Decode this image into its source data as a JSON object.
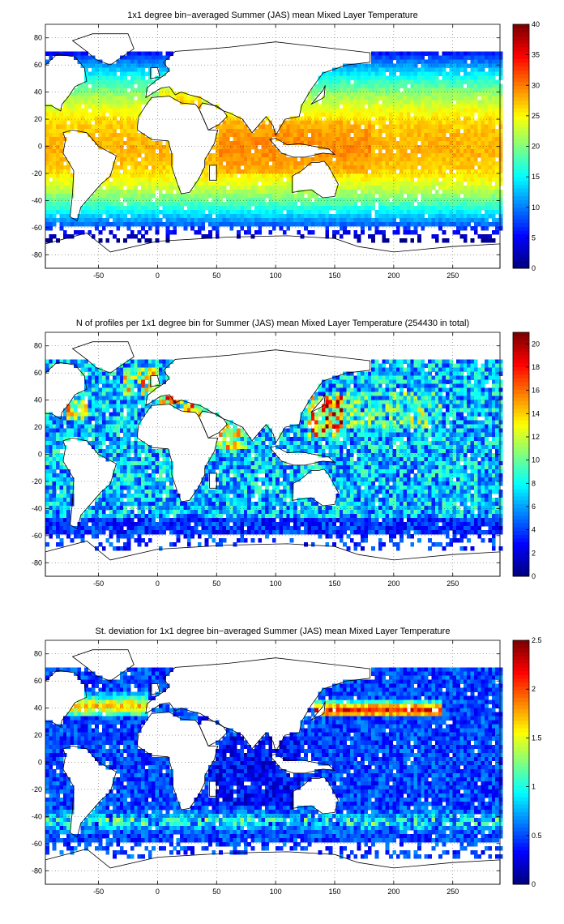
{
  "chart_data": [
    {
      "type": "heatmap",
      "title": "1x1 degree bin−averaged Summer (JAS) mean Mixed Layer Temperature",
      "xlabel": "",
      "ylabel": "",
      "xlim": [
        -95,
        290
      ],
      "ylim": [
        -90,
        90
      ],
      "xticks": [
        -50,
        0,
        50,
        100,
        150,
        200,
        250
      ],
      "yticks": [
        80,
        60,
        40,
        20,
        0,
        -20,
        -40,
        -60,
        -80
      ],
      "colorbar": {
        "min": 0,
        "max": 40,
        "ticks": [
          0,
          5,
          10,
          15,
          20,
          25,
          30,
          35,
          40
        ],
        "colormap": "jet"
      },
      "grid": "dotted",
      "field": "temperature"
    },
    {
      "type": "heatmap",
      "title": "N of profiles per 1x1 degree bin for Summer (JAS) mean Mixed Layer Temperature  (254430 in total)",
      "xlabel": "",
      "ylabel": "",
      "xlim": [
        -95,
        290
      ],
      "ylim": [
        -90,
        90
      ],
      "xticks": [
        -50,
        0,
        50,
        100,
        150,
        200,
        250
      ],
      "yticks": [
        80,
        60,
        40,
        20,
        0,
        -20,
        -40,
        -60,
        -80
      ],
      "colorbar": {
        "min": 0,
        "max": 21,
        "ticks": [
          0,
          2,
          4,
          6,
          8,
          10,
          12,
          14,
          16,
          18,
          20
        ],
        "colormap": "jet"
      },
      "grid": "dotted",
      "field": "count"
    },
    {
      "type": "heatmap",
      "title": "St. deviation for 1x1 degree bin−averaged Summer (JAS) mean Mixed Layer Temperature",
      "xlabel": "",
      "ylabel": "",
      "xlim": [
        -95,
        290
      ],
      "ylim": [
        -90,
        90
      ],
      "xticks": [
        -50,
        0,
        50,
        100,
        150,
        200,
        250
      ],
      "yticks": [
        80,
        60,
        40,
        20,
        0,
        -20,
        -40,
        -60,
        -80
      ],
      "colorbar": {
        "min": 0,
        "max": 2.5,
        "ticks": [
          0,
          0.5,
          1,
          1.5,
          2,
          2.5
        ],
        "colormap": "jet"
      },
      "grid": "dotted",
      "field": "stdev"
    }
  ]
}
